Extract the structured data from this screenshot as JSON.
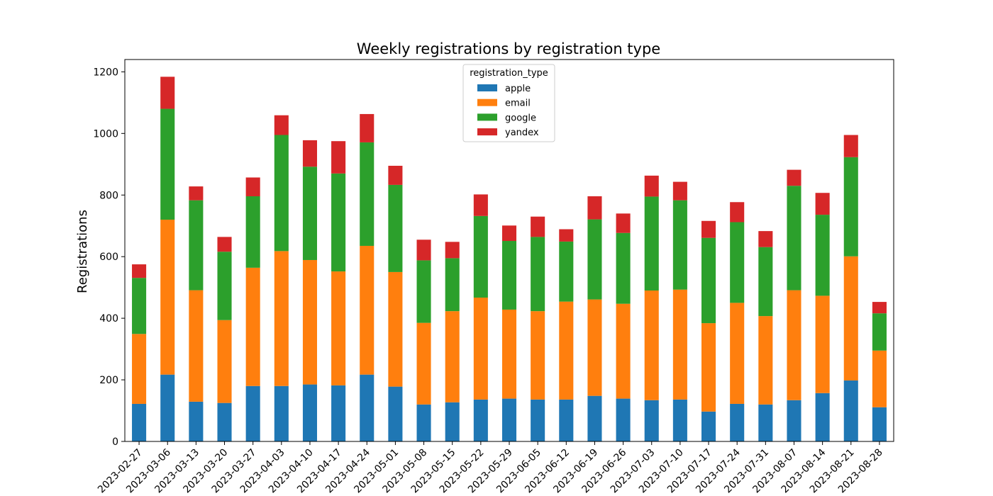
{
  "chart_data": {
    "type": "bar",
    "stacked": true,
    "title": "Weekly registrations by registration type",
    "xlabel": "",
    "ylabel": "Registrations",
    "ylim": [
      0,
      1240
    ],
    "yticks": [
      0,
      200,
      400,
      600,
      800,
      1000,
      1200
    ],
    "grid": false,
    "legend": {
      "title": "registration_type",
      "placement": "top-center"
    },
    "categories": [
      "2023-02-27",
      "2023-03-06",
      "2023-03-13",
      "2023-03-20",
      "2023-03-27",
      "2023-04-03",
      "2023-04-10",
      "2023-04-17",
      "2023-04-24",
      "2023-05-01",
      "2023-05-08",
      "2023-05-15",
      "2023-05-22",
      "2023-05-29",
      "2023-06-05",
      "2023-06-12",
      "2023-06-19",
      "2023-06-26",
      "2023-07-03",
      "2023-07-10",
      "2023-07-17",
      "2023-07-24",
      "2023-07-31",
      "2023-08-07",
      "2023-08-14",
      "2023-08-21",
      "2023-08-28"
    ],
    "series": [
      {
        "name": "apple",
        "color": "#1f77b4",
        "values": [
          122,
          217,
          129,
          125,
          180,
          180,
          185,
          182,
          217,
          178,
          120,
          127,
          136,
          139,
          136,
          136,
          148,
          139,
          134,
          136,
          97,
          122,
          120,
          134,
          157,
          198,
          111
        ]
      },
      {
        "name": "email",
        "color": "#ff7f0e",
        "values": [
          227,
          503,
          362,
          269,
          384,
          438,
          404,
          370,
          418,
          372,
          265,
          296,
          331,
          289,
          287,
          318,
          313,
          308,
          356,
          357,
          287,
          328,
          287,
          357,
          316,
          403,
          184
        ]
      },
      {
        "name": "google",
        "color": "#2ca02c",
        "values": [
          182,
          360,
          292,
          222,
          232,
          377,
          303,
          318,
          336,
          283,
          203,
          172,
          265,
          223,
          241,
          195,
          260,
          230,
          305,
          290,
          277,
          262,
          224,
          339,
          263,
          322,
          121
        ]
      },
      {
        "name": "yandex",
        "color": "#d62728",
        "values": [
          44,
          104,
          45,
          48,
          61,
          64,
          86,
          105,
          92,
          62,
          67,
          53,
          70,
          50,
          66,
          40,
          75,
          63,
          68,
          60,
          55,
          65,
          52,
          52,
          71,
          72,
          37
        ]
      }
    ]
  }
}
